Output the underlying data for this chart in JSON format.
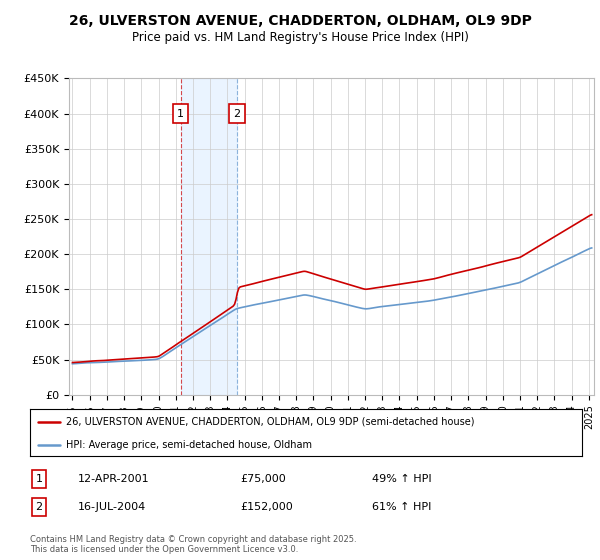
{
  "title": "26, ULVERSTON AVENUE, CHADDERTON, OLDHAM, OL9 9DP",
  "subtitle": "Price paid vs. HM Land Registry's House Price Index (HPI)",
  "ylim": [
    0,
    450000
  ],
  "xlim_start": 1994.8,
  "xlim_end": 2025.3,
  "legend_line1": "26, ULVERSTON AVENUE, CHADDERTON, OLDHAM, OL9 9DP (semi-detached house)",
  "legend_line2": "HPI: Average price, semi-detached house, Oldham",
  "transaction1_date": "12-APR-2001",
  "transaction1_price": "£75,000",
  "transaction1_hpi": "49% ↑ HPI",
  "transaction1_year": 2001.28,
  "transaction1_value": 75000,
  "transaction2_date": "16-JUL-2004",
  "transaction2_price": "£152,000",
  "transaction2_hpi": "61% ↑ HPI",
  "transaction2_year": 2004.54,
  "transaction2_value": 152000,
  "red_color": "#cc0000",
  "blue_color": "#6699cc",
  "shade_color": "#ddeeff",
  "footnote": "Contains HM Land Registry data © Crown copyright and database right 2025.\nThis data is licensed under the Open Government Licence v3.0."
}
